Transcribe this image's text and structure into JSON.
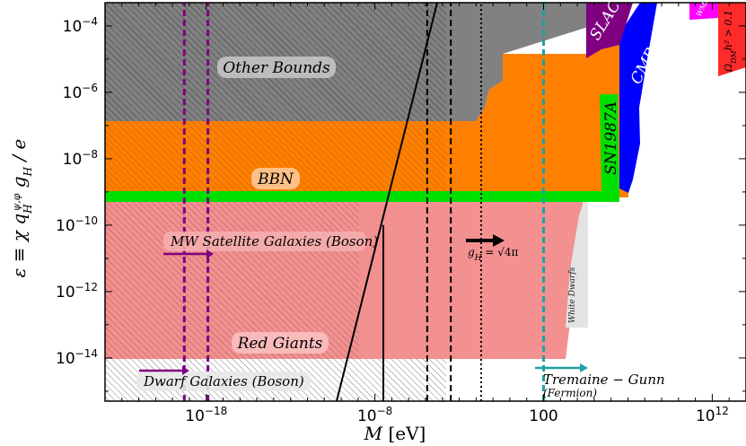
{
  "chart_data": {
    "type": "area",
    "xlabel": "M [eV]",
    "ylabel": "ε ≡ χ q_H^{ψ,φ} g_H / e",
    "x_scale": "log",
    "y_scale": "log",
    "xlim_log10": [
      -24,
      14
    ],
    "ylim_log10": [
      -15.3,
      -3.3
    ],
    "x_ticks": [
      {
        "exp": -18,
        "label": "10",
        "sup": "−18"
      },
      {
        "exp": -8,
        "label": "10",
        "sup": "−8"
      },
      {
        "exp": 2,
        "label": "100",
        "sup": ""
      },
      {
        "exp": 12,
        "label": "10",
        "sup": "12"
      }
    ],
    "y_ticks": [
      {
        "exp": -4,
        "label": "10",
        "sup": "−4"
      },
      {
        "exp": -6,
        "label": "10",
        "sup": "−6"
      },
      {
        "exp": -8,
        "label": "10",
        "sup": "−8"
      },
      {
        "exp": -10,
        "label": "10",
        "sup": "−10"
      },
      {
        "exp": -12,
        "label": "10",
        "sup": "−12"
      },
      {
        "exp": -14,
        "label": "10",
        "sup": "−14"
      }
    ],
    "regions": [
      {
        "name": "Other Bounds",
        "color": "#7a7a7a",
        "hatched": true
      },
      {
        "name": "BBN",
        "color": "#ff8000",
        "hatched": true
      },
      {
        "name": "Red Giants",
        "color": "#f08080",
        "hatched": true
      },
      {
        "name": "White Dwarfs",
        "color": "#e6e6e6",
        "hatched": false
      },
      {
        "name": "SN1987A",
        "color": "#00e000",
        "hatched": false
      },
      {
        "name": "CMB",
        "color": "#0000ff",
        "hatched": false
      },
      {
        "name": "SLAC",
        "color": "#800080",
        "hatched": false
      },
      {
        "name": "WMAP",
        "color": "#ff00ff",
        "hatched": false
      },
      {
        "name": "Ω_DM h² > 0.1",
        "color": "#ff2a2a",
        "hatched": false
      }
    ],
    "vertical_lines": [
      {
        "x_log10": -19.3,
        "color": "#800080",
        "style": "dashed"
      },
      {
        "x_log10": -17.9,
        "color": "#800080",
        "style": "dashed"
      },
      {
        "x_log10": -7.5,
        "color": "#000",
        "style": "solid",
        "y_top_log10": -10.0
      },
      {
        "x_log10": -4.9,
        "color": "#000",
        "style": "dashed"
      },
      {
        "x_log10": -3.5,
        "color": "#000",
        "style": "dashed"
      },
      {
        "x_log10": -1.7,
        "color": "#000",
        "style": "dotted"
      },
      {
        "x_log10": 2,
        "color": "#20a0a0",
        "style": "dashed"
      }
    ],
    "annotations": {
      "other_bounds": "Other Bounds",
      "bbn": "BBN",
      "red_giants": "Red Giants",
      "mw_satellites": "MW Satellite Galaxies (Boson)",
      "dwarf_galaxies": "Dwarf Galaxies (Boson)",
      "coupling_prefix": "g",
      "coupling_sub": "H",
      "coupling_value": " = √4π",
      "tremaine_a": "Tremaine",
      "tremaine_dash": " − ",
      "tremaine_b": "Gunn",
      "fermion": "(Fermion)",
      "white_dwarfs": "White Dwarfs",
      "sn1987a": "SN1987A",
      "cmb": "CMB",
      "slac": "SLAC",
      "wmap": "WMAP",
      "omega": "Ω",
      "omega_sub": "DM",
      "omega_rest": "h² > 0.1"
    }
  }
}
